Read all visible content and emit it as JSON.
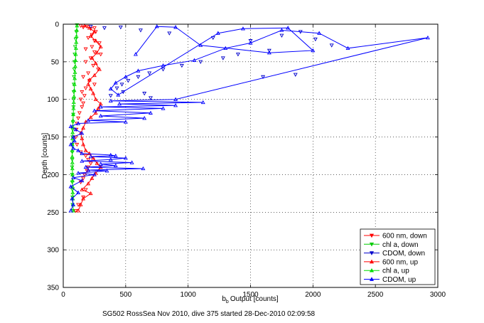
{
  "chart_data": {
    "type": "scatter",
    "title": "",
    "xlabel": "Output [counts]",
    "xlabel_prefix": "b",
    "xlabel_sub": "b",
    "ylabel": "Depth [counts]",
    "caption": "SG502 RossSea Nov 2010, dive 375 started 28-Dec-2010 02:09:58",
    "xlim": [
      0,
      3000
    ],
    "ylim": [
      0,
      350
    ],
    "y_reversed": true,
    "grid": true,
    "legend_position": "bottom-right",
    "x_ticks": [
      "0",
      "500",
      "1000",
      "1500",
      "2000",
      "2500",
      "3000"
    ],
    "y_ticks": [
      "0",
      "50",
      "100",
      "150",
      "200",
      "250",
      "300",
      "350"
    ],
    "series": [
      {
        "name": "600 nm, down",
        "color": "#ff0000",
        "marker": "triangle-down",
        "style": "markers",
        "points": [
          [
            140,
            2
          ],
          [
            160,
            4
          ],
          [
            190,
            3
          ],
          [
            220,
            6
          ],
          [
            250,
            5
          ],
          [
            260,
            10
          ],
          [
            230,
            14
          ],
          [
            200,
            18
          ],
          [
            250,
            22
          ],
          [
            290,
            25
          ],
          [
            230,
            30
          ],
          [
            180,
            33
          ],
          [
            250,
            37
          ],
          [
            300,
            40
          ],
          [
            220,
            45
          ],
          [
            180,
            50
          ],
          [
            240,
            55
          ],
          [
            280,
            60
          ],
          [
            200,
            65
          ],
          [
            160,
            70
          ],
          [
            210,
            75
          ],
          [
            250,
            80
          ],
          [
            180,
            85
          ],
          [
            150,
            90
          ],
          [
            170,
            95
          ],
          [
            140,
            100
          ],
          [
            160,
            105
          ],
          [
            150,
            110
          ],
          [
            130,
            118
          ],
          [
            120,
            125
          ],
          [
            110,
            132
          ],
          [
            105,
            140
          ],
          [
            100,
            150
          ],
          [
            110,
            160
          ],
          [
            140,
            170
          ],
          [
            180,
            175
          ],
          [
            200,
            180
          ],
          [
            220,
            185
          ],
          [
            200,
            190
          ],
          [
            190,
            195
          ],
          [
            170,
            200
          ],
          [
            160,
            205
          ],
          [
            140,
            210
          ],
          [
            180,
            220
          ],
          [
            160,
            230
          ],
          [
            120,
            240
          ],
          [
            100,
            248
          ]
        ]
      },
      {
        "name": "chl a, down",
        "color": "#00cc00",
        "marker": "triangle-down",
        "style": "markers",
        "points": [
          [
            110,
            1
          ],
          [
            105,
            10
          ],
          [
            100,
            20
          ],
          [
            95,
            30
          ],
          [
            92,
            40
          ],
          [
            90,
            50
          ],
          [
            88,
            60
          ],
          [
            86,
            70
          ],
          [
            85,
            80
          ],
          [
            84,
            90
          ],
          [
            83,
            100
          ],
          [
            82,
            110
          ],
          [
            80,
            120
          ],
          [
            78,
            130
          ],
          [
            75,
            140
          ],
          [
            74,
            150
          ],
          [
            73,
            160
          ],
          [
            72,
            170
          ],
          [
            72,
            180
          ],
          [
            71,
            190
          ],
          [
            71,
            200
          ],
          [
            72,
            210
          ],
          [
            73,
            220
          ],
          [
            74,
            230
          ],
          [
            75,
            240
          ],
          [
            76,
            248
          ]
        ]
      },
      {
        "name": "CDOM, down",
        "color": "#0000cc",
        "marker": "triangle-down",
        "style": "markers",
        "points": [
          [
            220,
            3
          ],
          [
            330,
            5
          ],
          [
            460,
            4
          ],
          [
            620,
            8
          ],
          [
            850,
            12
          ],
          [
            1200,
            18
          ],
          [
            1500,
            22
          ],
          [
            1750,
            15
          ],
          [
            1900,
            10
          ],
          [
            2020,
            20
          ],
          [
            2150,
            28
          ],
          [
            1650,
            35
          ],
          [
            1400,
            40
          ],
          [
            1280,
            45
          ],
          [
            1100,
            50
          ],
          [
            950,
            55
          ],
          [
            800,
            60
          ],
          [
            690,
            65
          ],
          [
            600,
            70
          ],
          [
            520,
            75
          ],
          [
            470,
            80
          ],
          [
            430,
            85
          ],
          [
            480,
            90
          ],
          [
            650,
            92
          ],
          [
            380,
            95
          ],
          [
            700,
            98
          ],
          [
            1860,
            67
          ],
          [
            1600,
            70
          ]
        ]
      },
      {
        "name": "600 nm, up",
        "color": "#ff0000",
        "marker": "triangle-up",
        "style": "line-markers",
        "points": [
          [
            120,
            248
          ],
          [
            140,
            240
          ],
          [
            160,
            232
          ],
          [
            220,
            225
          ],
          [
            150,
            220
          ],
          [
            200,
            212
          ],
          [
            230,
            205
          ],
          [
            260,
            198
          ],
          [
            300,
            190
          ],
          [
            270,
            185
          ],
          [
            240,
            178
          ],
          [
            210,
            172
          ],
          [
            180,
            168
          ],
          [
            160,
            160
          ],
          [
            150,
            152
          ],
          [
            140,
            145
          ],
          [
            160,
            138
          ],
          [
            180,
            130
          ],
          [
            220,
            124
          ],
          [
            260,
            118
          ],
          [
            280,
            112
          ],
          [
            300,
            106
          ],
          [
            260,
            100
          ],
          [
            240,
            92
          ],
          [
            220,
            86
          ],
          [
            200,
            80
          ],
          [
            210,
            74
          ],
          [
            250,
            68
          ],
          [
            290,
            60
          ],
          [
            260,
            52
          ],
          [
            230,
            45
          ],
          [
            270,
            38
          ],
          [
            300,
            30
          ],
          [
            260,
            22
          ],
          [
            220,
            16
          ],
          [
            250,
            10
          ],
          [
            210,
            5
          ],
          [
            170,
            2
          ]
        ]
      },
      {
        "name": "chl a, up",
        "color": "#00dd00",
        "marker": "triangle-up",
        "style": "line-markers",
        "points": [
          [
            80,
            248
          ],
          [
            78,
            240
          ],
          [
            77,
            232
          ],
          [
            76,
            224
          ],
          [
            75,
            216
          ],
          [
            74,
            208
          ],
          [
            74,
            200
          ],
          [
            73,
            192
          ],
          [
            73,
            184
          ],
          [
            72,
            176
          ],
          [
            72,
            168
          ],
          [
            73,
            160
          ],
          [
            74,
            152
          ],
          [
            75,
            144
          ],
          [
            76,
            136
          ],
          [
            78,
            128
          ],
          [
            80,
            120
          ],
          [
            82,
            112
          ],
          [
            84,
            104
          ],
          [
            86,
            96
          ],
          [
            88,
            88
          ],
          [
            90,
            80
          ],
          [
            92,
            72
          ],
          [
            94,
            64
          ],
          [
            96,
            56
          ],
          [
            98,
            48
          ],
          [
            100,
            40
          ],
          [
            102,
            32
          ],
          [
            104,
            24
          ],
          [
            106,
            16
          ],
          [
            108,
            8
          ],
          [
            110,
            2
          ]
        ]
      },
      {
        "name": "CDOM, up",
        "color": "#0000ff",
        "marker": "triangle-up",
        "style": "line-markers",
        "points": [
          [
            60,
            248
          ],
          [
            80,
            240
          ],
          [
            70,
            232
          ],
          [
            120,
            224
          ],
          [
            60,
            216
          ],
          [
            150,
            208
          ],
          [
            80,
            204
          ],
          [
            250,
            200
          ],
          [
            120,
            198
          ],
          [
            350,
            195
          ],
          [
            200,
            194
          ],
          [
            640,
            192
          ],
          [
            180,
            190
          ],
          [
            420,
            188
          ],
          [
            300,
            186
          ],
          [
            550,
            184
          ],
          [
            150,
            182
          ],
          [
            380,
            180
          ],
          [
            500,
            178
          ],
          [
            220,
            176
          ],
          [
            420,
            175
          ],
          [
            380,
            174
          ],
          [
            150,
            172
          ],
          [
            120,
            168
          ],
          [
            80,
            165
          ],
          [
            60,
            160
          ],
          [
            90,
            155
          ],
          [
            80,
            150
          ],
          [
            150,
            145
          ],
          [
            100,
            140
          ],
          [
            60,
            136
          ],
          [
            120,
            132
          ],
          [
            500,
            130
          ],
          [
            200,
            128
          ],
          [
            650,
            125
          ],
          [
            300,
            122
          ],
          [
            700,
            118
          ],
          [
            250,
            115
          ],
          [
            800,
            112
          ],
          [
            300,
            110
          ],
          [
            900,
            108
          ],
          [
            450,
            106
          ],
          [
            1120,
            104
          ],
          [
            380,
            102
          ],
          [
            900,
            100
          ],
          [
            2920,
            18
          ],
          [
            2280,
            32
          ],
          [
            2050,
            12
          ],
          [
            1750,
            8
          ],
          [
            1500,
            25
          ],
          [
            1300,
            32
          ],
          [
            1050,
            48
          ],
          [
            800,
            55
          ],
          [
            600,
            62
          ],
          [
            500,
            70
          ],
          [
            420,
            78
          ],
          [
            380,
            86
          ],
          [
            440,
            94
          ],
          [
            1240,
            12
          ],
          [
            1440,
            6
          ],
          [
            1800,
            5
          ],
          [
            2000,
            35
          ],
          [
            1650,
            38
          ],
          [
            1100,
            28
          ],
          [
            900,
            4
          ],
          [
            750,
            3
          ],
          [
            580,
            40
          ]
        ]
      }
    ]
  }
}
